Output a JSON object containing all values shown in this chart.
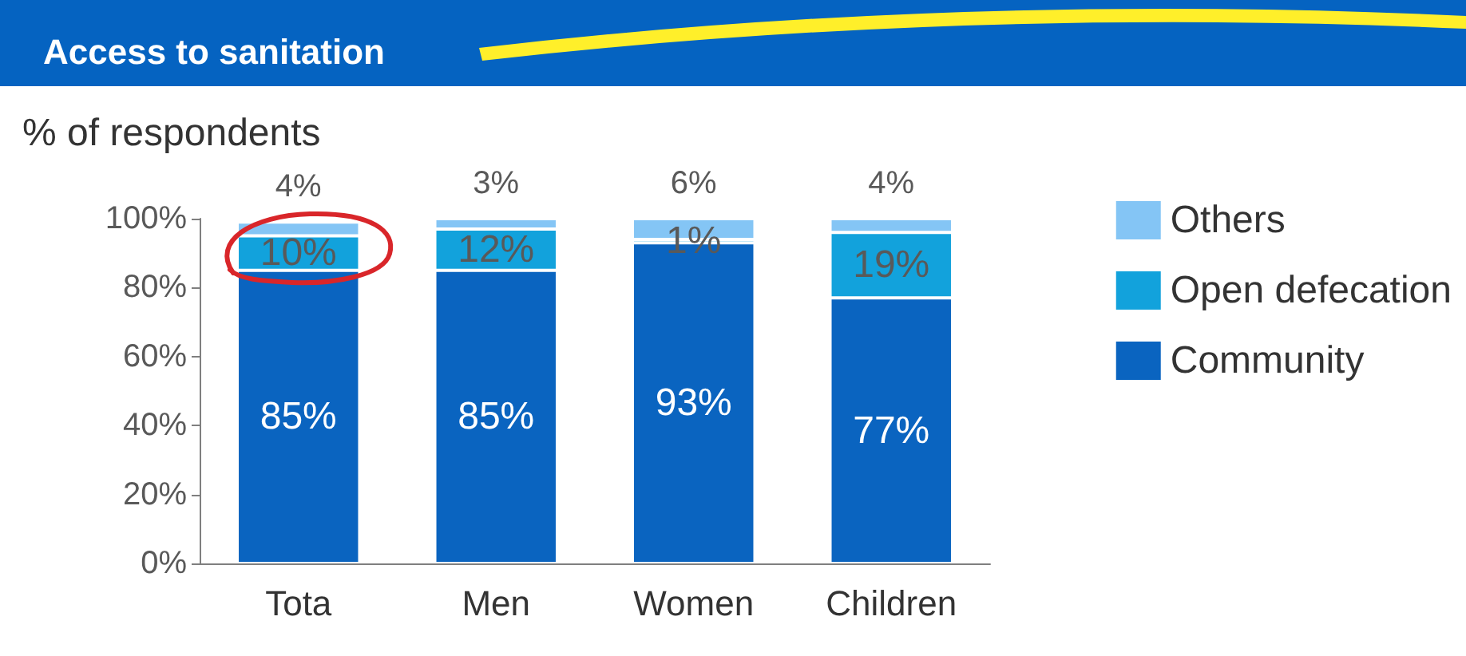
{
  "chart_data": {
    "type": "bar",
    "title": "Access to sanitation",
    "ylabel": "% of respondents",
    "stacked": true,
    "categories": [
      "Tota",
      "Men",
      "Women",
      "Children"
    ],
    "series": [
      {
        "name": "Community",
        "color": "#0a64c0",
        "values": [
          85,
          85,
          93,
          77
        ],
        "value_labels": [
          "85%",
          "85%",
          "93%",
          "77%"
        ]
      },
      {
        "name": "Open defecation",
        "color": "#12a2dc",
        "values": [
          10,
          12,
          1,
          19
        ],
        "value_labels": [
          "10%",
          "12%",
          "1%",
          "19%"
        ]
      },
      {
        "name": "Others",
        "color": "#84c5f5",
        "values": [
          4,
          3,
          6,
          4
        ],
        "value_labels": [
          "4%",
          "3%",
          "6%",
          "4%"
        ]
      }
    ],
    "ylim": [
      0,
      100
    ],
    "yticks": [
      {
        "value": 0,
        "label": "0%"
      },
      {
        "value": 20,
        "label": "20%"
      },
      {
        "value": 40,
        "label": "40%"
      },
      {
        "value": 60,
        "label": "60%"
      },
      {
        "value": 80,
        "label": "80%"
      },
      {
        "value": 100,
        "label": "100%"
      }
    ],
    "grid": false,
    "legend": "right"
  }
}
